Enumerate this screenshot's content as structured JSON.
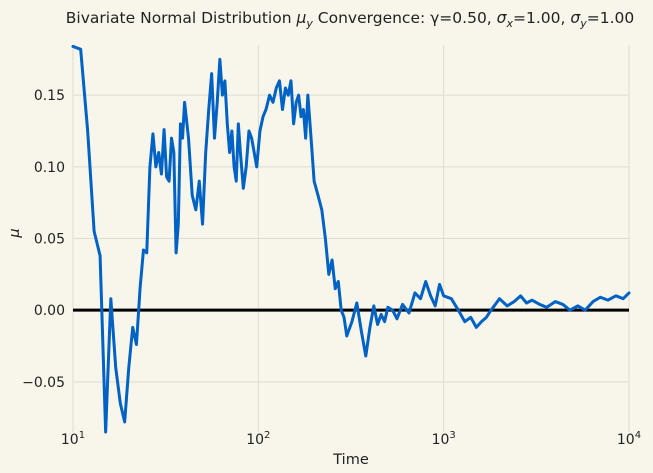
{
  "chart_data": {
    "type": "line",
    "title_parts": {
      "prefix": "Bivariate Normal Distribution ",
      "mu_symbol": "μ",
      "mu_sub": "y",
      "mid": " Convergence: γ=0.50, ",
      "sx_symbol": "σ",
      "sx_sub": "x",
      "sx_val": "=1.00, ",
      "sy_symbol": "σ",
      "sy_sub": "y",
      "sy_val": "=1.00"
    },
    "xlabel": "Time",
    "ylabel": "μ",
    "x_scale": "log",
    "xlim": [
      10,
      10000
    ],
    "ylim": [
      -0.085,
      0.185
    ],
    "x_ticks": [
      {
        "value": 10,
        "base": "10",
        "exp": "1"
      },
      {
        "value": 100,
        "base": "10",
        "exp": "2"
      },
      {
        "value": 1000,
        "base": "10",
        "exp": "3"
      },
      {
        "value": 10000,
        "base": "10",
        "exp": "4"
      }
    ],
    "y_ticks": [
      {
        "value": -0.05,
        "label": "−0.05"
      },
      {
        "value": 0.0,
        "label": "0.00"
      },
      {
        "value": 0.05,
        "label": "0.05"
      },
      {
        "value": 0.1,
        "label": "0.10"
      },
      {
        "value": 0.15,
        "label": "0.15"
      }
    ],
    "grid": true,
    "reference_line": {
      "y": 0.0,
      "color": "#000000"
    },
    "series": [
      {
        "color": "#0062c4",
        "x": [
          10,
          11,
          12,
          13,
          14,
          15,
          16,
          17,
          18,
          19,
          20,
          21,
          22,
          23,
          24,
          25,
          26,
          27,
          28,
          29,
          30,
          31,
          32,
          33,
          34,
          35,
          36,
          37,
          38,
          39,
          40,
          42,
          44,
          46,
          48,
          50,
          52,
          54,
          56,
          58,
          60,
          62,
          64,
          66,
          68,
          70,
          72,
          74,
          76,
          78,
          80,
          83,
          86,
          89,
          92,
          95,
          98,
          102,
          106,
          110,
          115,
          120,
          125,
          130,
          135,
          140,
          145,
          150,
          155,
          160,
          165,
          170,
          175,
          180,
          185,
          190,
          195,
          200,
          210,
          220,
          230,
          240,
          250,
          260,
          270,
          280,
          290,
          300,
          320,
          340,
          360,
          380,
          400,
          420,
          440,
          460,
          480,
          500,
          530,
          560,
          600,
          650,
          700,
          750,
          800,
          850,
          900,
          950,
          1000,
          1100,
          1200,
          1300,
          1400,
          1500,
          1600,
          1700,
          1800,
          1900,
          2000,
          2200,
          2400,
          2600,
          2800,
          3000,
          3300,
          3600,
          4000,
          4400,
          4800,
          5300,
          5800,
          6400,
          7000,
          7700,
          8500,
          9300,
          10000
        ],
        "y": [
          0.184,
          0.182,
          0.125,
          0.055,
          0.038,
          -0.085,
          0.008,
          -0.04,
          -0.065,
          -0.078,
          -0.04,
          -0.012,
          -0.024,
          0.015,
          0.042,
          0.04,
          0.1,
          0.123,
          0.1,
          0.11,
          0.095,
          0.126,
          0.093,
          0.09,
          0.12,
          0.11,
          0.04,
          0.06,
          0.13,
          0.12,
          0.145,
          0.12,
          0.08,
          0.07,
          0.09,
          0.06,
          0.11,
          0.14,
          0.165,
          0.12,
          0.145,
          0.175,
          0.15,
          0.16,
          0.13,
          0.11,
          0.125,
          0.1,
          0.09,
          0.13,
          0.11,
          0.085,
          0.1,
          0.125,
          0.12,
          0.11,
          0.1,
          0.125,
          0.135,
          0.14,
          0.15,
          0.145,
          0.155,
          0.16,
          0.14,
          0.155,
          0.15,
          0.16,
          0.13,
          0.145,
          0.15,
          0.135,
          0.14,
          0.12,
          0.15,
          0.13,
          0.11,
          0.09,
          0.08,
          0.07,
          0.05,
          0.025,
          0.035,
          0.015,
          0.02,
          0.0,
          -0.005,
          -0.018,
          -0.008,
          0.005,
          -0.015,
          -0.032,
          -0.012,
          0.003,
          -0.01,
          -0.003,
          -0.008,
          0.002,
          0.0,
          -0.006,
          0.004,
          -0.002,
          0.012,
          0.008,
          0.02,
          0.01,
          0.003,
          0.018,
          0.01,
          0.008,
          0.0,
          -0.008,
          -0.005,
          -0.012,
          -0.008,
          -0.005,
          0.0,
          0.004,
          0.008,
          0.003,
          0.006,
          0.01,
          0.005,
          0.007,
          0.004,
          0.002,
          0.006,
          0.004,
          0.0,
          0.003,
          0.0,
          0.006,
          0.009,
          0.007,
          0.01,
          0.008,
          0.012
        ]
      }
    ]
  }
}
